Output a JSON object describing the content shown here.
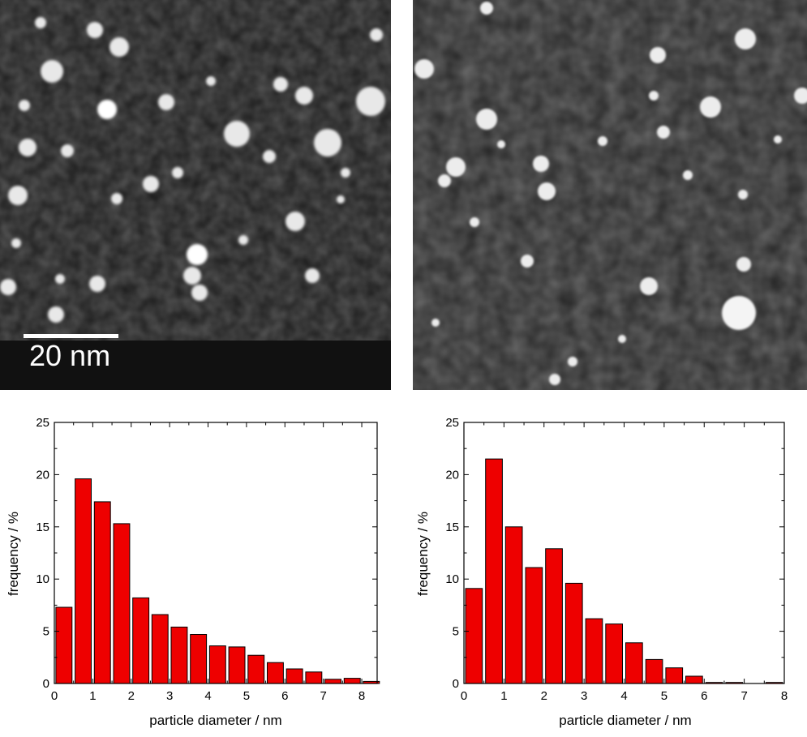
{
  "micrographs": [
    {
      "id": "left",
      "scale_bar_label": "20 nm"
    },
    {
      "id": "right"
    }
  ],
  "colors": {
    "bar_fill": "#ee0000",
    "bar_stroke": "#000000",
    "image_bg": "#1e1e1e"
  },
  "chart_data": [
    {
      "type": "bar",
      "xlabel": "particle diameter / nm",
      "ylabel": "frequency / %",
      "xlim": [
        0,
        8.4
      ],
      "ylim": [
        0,
        25
      ],
      "xticks": [
        0,
        1,
        2,
        3,
        4,
        5,
        6,
        7,
        8
      ],
      "yticks": [
        0,
        5,
        10,
        15,
        20,
        25
      ],
      "bin_width": 0.5,
      "bin_centers": [
        0.25,
        0.75,
        1.25,
        1.75,
        2.25,
        2.75,
        3.25,
        3.75,
        4.25,
        4.75,
        5.25,
        5.75,
        6.25,
        6.75,
        7.25,
        7.75,
        8.25
      ],
      "values": [
        7.3,
        19.6,
        17.4,
        15.3,
        8.2,
        6.6,
        5.4,
        4.7,
        3.6,
        3.5,
        2.7,
        2.0,
        1.4,
        1.1,
        0.4,
        0.5,
        0.2
      ]
    },
    {
      "type": "bar",
      "xlabel": "particle diameter / nm",
      "ylabel": "frequency / %",
      "xlim": [
        0,
        8
      ],
      "ylim": [
        0,
        25
      ],
      "xticks": [
        0,
        1,
        2,
        3,
        4,
        5,
        6,
        7,
        8
      ],
      "yticks": [
        0,
        5,
        10,
        15,
        20,
        25
      ],
      "bin_width": 0.5,
      "bin_centers": [
        0.25,
        0.75,
        1.25,
        1.75,
        2.25,
        2.75,
        3.25,
        3.75,
        4.25,
        4.75,
        5.25,
        5.75,
        6.25,
        6.75,
        7.25,
        7.75
      ],
      "values": [
        9.1,
        21.5,
        15.0,
        11.1,
        12.9,
        9.6,
        6.2,
        5.7,
        3.9,
        2.3,
        1.5,
        0.7,
        0.1,
        0.1,
        0.0,
        0.1
      ]
    }
  ]
}
